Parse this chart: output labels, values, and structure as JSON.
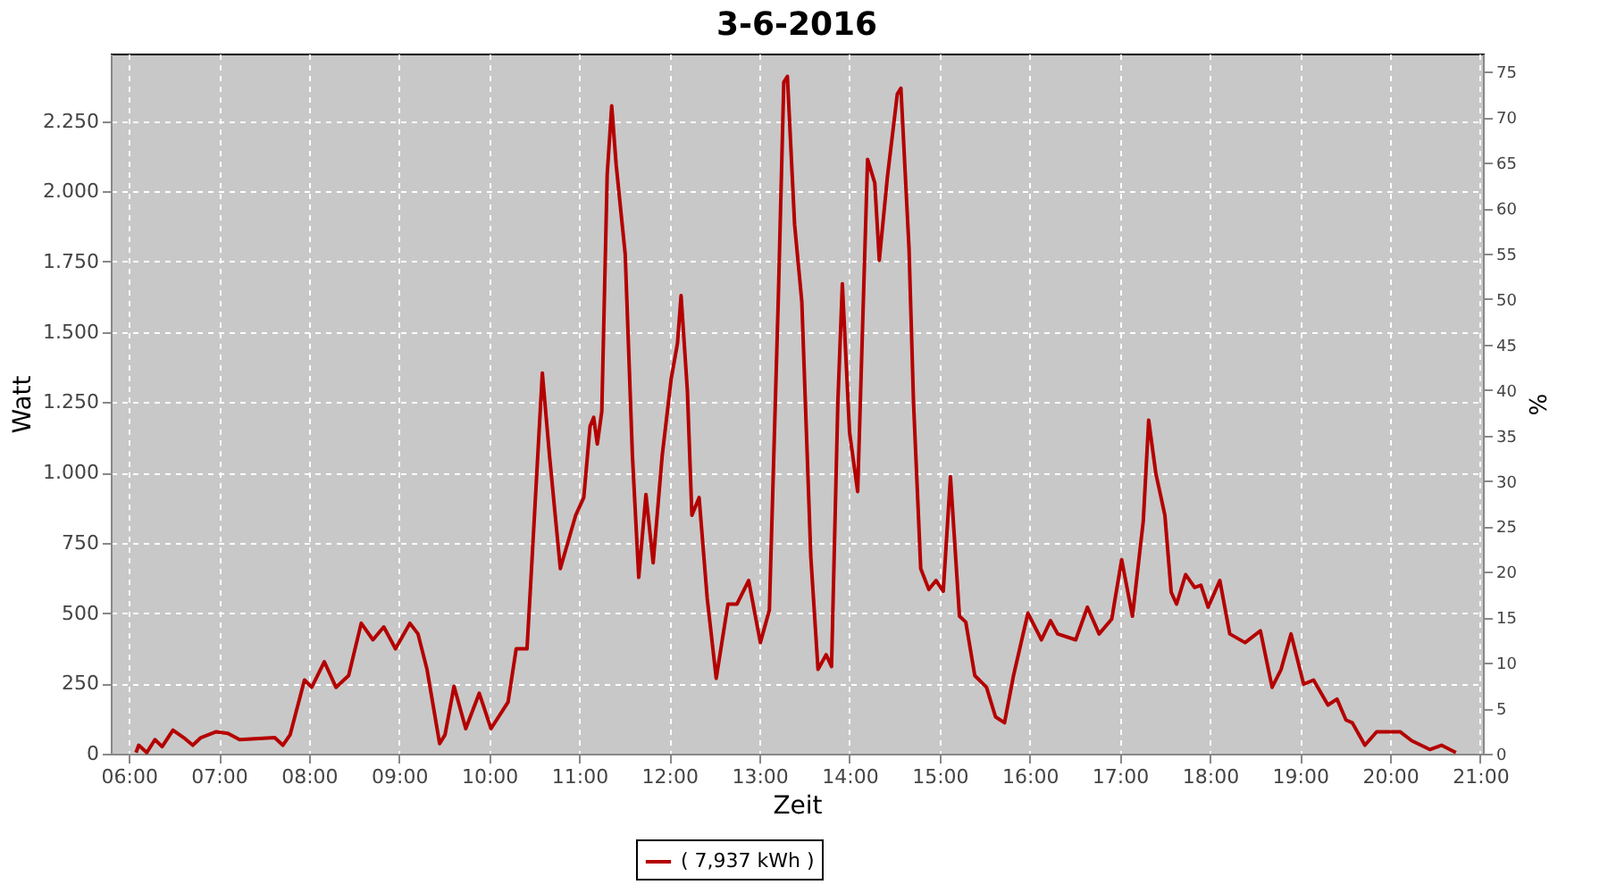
{
  "chart_data": {
    "type": "line",
    "title": "3-6-2016",
    "xlabel": "Zeit",
    "ylabel": "Watt",
    "y2label": "%",
    "xlim": [
      5.8,
      21.03
    ],
    "xticks": [
      {
        "value": 6,
        "label": "06:00"
      },
      {
        "value": 7,
        "label": "07:00"
      },
      {
        "value": 8,
        "label": "08:00"
      },
      {
        "value": 9,
        "label": "09:00"
      },
      {
        "value": 10,
        "label": "10:00"
      },
      {
        "value": 11,
        "label": "11:00"
      },
      {
        "value": 12,
        "label": "12:00"
      },
      {
        "value": 13,
        "label": "13:00"
      },
      {
        "value": 14,
        "label": "14:00"
      },
      {
        "value": 15,
        "label": "15:00"
      },
      {
        "value": 16,
        "label": "16:00"
      },
      {
        "value": 17,
        "label": "17:00"
      },
      {
        "value": 18,
        "label": "18:00"
      },
      {
        "value": 19,
        "label": "19:00"
      },
      {
        "value": 20,
        "label": "20:00"
      },
      {
        "value": 21,
        "label": "21:00"
      }
    ],
    "ylim": [
      0,
      2490
    ],
    "yticks": [
      0,
      250,
      500,
      750,
      {
        "value": 1000,
        "label": "1.000"
      },
      {
        "value": 1250,
        "label": "1.250"
      },
      {
        "value": 1500,
        "label": "1.500"
      },
      {
        "value": 1750,
        "label": "1.750"
      },
      {
        "value": 2000,
        "label": "2.000"
      },
      {
        "value": 2250,
        "label": "2.250"
      }
    ],
    "y2lim": [
      0,
      77
    ],
    "y2ticks": [
      0,
      5,
      10,
      15,
      20,
      25,
      30,
      35,
      40,
      45,
      50,
      55,
      60,
      65,
      70,
      75
    ],
    "grid": true,
    "legend": "bottom",
    "marker": "none",
    "line_style": "solid",
    "series": [
      {
        "name": "( 7,937 kWh )",
        "color": "#b40000",
        "x": [
          6.08,
          6.11,
          6.2,
          6.29,
          6.37,
          6.49,
          6.61,
          6.71,
          6.8,
          6.97,
          7.1,
          7.23,
          7.62,
          7.71,
          7.79,
          7.95,
          8.03,
          8.17,
          8.3,
          8.44,
          8.58,
          8.71,
          8.83,
          8.96,
          9.12,
          9.21,
          9.31,
          9.45,
          9.51,
          9.61,
          9.74,
          9.89,
          10.02,
          10.21,
          10.3,
          10.42,
          10.47,
          10.59,
          10.67,
          10.79,
          10.96,
          11.05,
          11.12,
          11.16,
          11.2,
          11.25,
          11.31,
          11.36,
          11.41,
          11.51,
          11.59,
          11.66,
          11.74,
          11.82,
          11.92,
          12.02,
          12.09,
          12.13,
          12.2,
          12.25,
          12.33,
          12.42,
          12.52,
          12.65,
          12.75,
          12.88,
          13.01,
          13.11,
          13.21,
          13.27,
          13.31,
          13.39,
          13.47,
          13.57,
          13.65,
          13.74,
          13.8,
          13.87,
          13.92,
          14.0,
          14.09,
          14.2,
          14.28,
          14.33,
          14.42,
          14.53,
          14.57,
          14.66,
          14.71,
          14.79,
          14.88,
          14.96,
          15.04,
          15.12,
          15.22,
          15.29,
          15.39,
          15.52,
          15.62,
          15.72,
          15.82,
          15.98,
          16.13,
          16.23,
          16.31,
          16.51,
          16.64,
          16.77,
          16.91,
          17.02,
          17.14,
          17.26,
          17.32,
          17.4,
          17.5,
          17.57,
          17.63,
          17.73,
          17.83,
          17.9,
          17.98,
          18.11,
          18.22,
          18.39,
          18.56,
          18.69,
          18.79,
          18.9,
          19.04,
          19.15,
          19.31,
          19.41,
          19.51,
          19.58,
          19.72,
          19.85,
          20.11,
          20.24,
          20.44,
          20.57,
          20.73
        ],
        "values": [
          4,
          30,
          4,
          50,
          25,
          84,
          57,
          30,
          57,
          78,
          72,
          50,
          57,
          30,
          67,
          262,
          236,
          327,
          236,
          278,
          464,
          405,
          451,
          373,
          464,
          426,
          300,
          36,
          67,
          240,
          89,
          215,
          89,
          184,
          373,
          373,
          658,
          1354,
          1059,
          658,
          848,
          911,
          1165,
          1196,
          1101,
          1217,
          2061,
          2304,
          2093,
          1776,
          1059,
          627,
          922,
          679,
          1059,
          1333,
          1460,
          1629,
          1291,
          848,
          911,
          553,
          268,
          532,
          532,
          616,
          395,
          511,
          1629,
          2388,
          2409,
          1882,
          1608,
          700,
          300,
          352,
          310,
          1249,
          1671,
          1143,
          932,
          2114,
          2030,
          1755,
          2051,
          2346,
          2367,
          1797,
          1249,
          658,
          584,
          616,
          578,
          985,
          489,
          468,
          278,
          236,
          131,
          110,
          278,
          500,
          405,
          473,
          426,
          405,
          521,
          426,
          479,
          690,
          489,
          827,
          1186,
          996,
          848,
          574,
          532,
          637,
          591,
          599,
          521,
          616,
          426,
          395,
          437,
          236,
          300,
          426,
          247,
          262,
          173,
          194,
          120,
          110,
          30,
          78,
          78,
          46,
          15,
          30,
          4
        ]
      }
    ]
  }
}
